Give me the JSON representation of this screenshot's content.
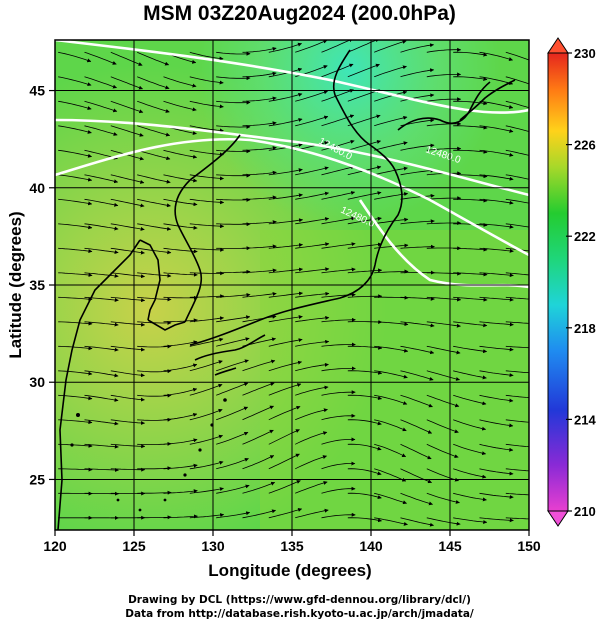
{
  "title": "MSM 03Z20Aug2024 (200.0hPa)",
  "map": {
    "xlabel": "Longitude (degrees)",
    "ylabel": "Latitude  (degrees)",
    "lon_range": [
      120,
      150
    ],
    "lat_range": [
      22.4,
      47.6
    ],
    "lon_ticks": [
      "120",
      "125",
      "130",
      "135",
      "140",
      "145",
      "150"
    ],
    "lat_ticks": [
      "25",
      "30",
      "35",
      "40",
      "45"
    ],
    "field": "temperature shading with streamlines and white contours",
    "contour_labels": [
      "12480.0",
      "12480.0",
      "12480.0"
    ]
  },
  "colorbar": {
    "min": 210,
    "max": 230,
    "ticks": [
      "210",
      "214",
      "218",
      "222",
      "226",
      "230"
    ]
  },
  "credits": {
    "line1": "Drawing by DCL (https://www.gfd-dennou.org/library/dcl/)",
    "line2": "Data from http://database.rish.kyoto-u.ac.jp/arch/jmadata/"
  },
  "colors": {
    "low": "#e040c0",
    "mid": "#22cc33",
    "high": "#e53020"
  }
}
